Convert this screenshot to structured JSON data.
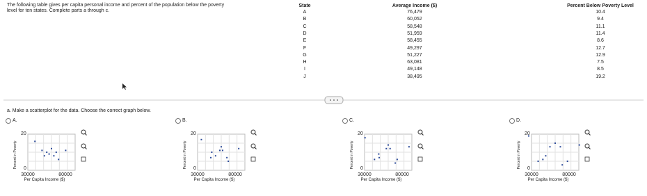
{
  "intro": [
    "The following table gives per capita personal income and percent of the population below the poverty",
    "level for ten states. Complete parts a through c."
  ],
  "table": {
    "headers": [
      "State",
      "Average Income ($)",
      "Percent Below Poverty Level"
    ],
    "rows": [
      [
        "A",
        "76,479",
        "10.4"
      ],
      [
        "B",
        "60,052",
        "9.4"
      ],
      [
        "C",
        "58,548",
        "11.1"
      ],
      [
        "D",
        "51,959",
        "11.4"
      ],
      [
        "E",
        "58,455",
        "8.6"
      ],
      [
        "F",
        "49,297",
        "12.7"
      ],
      [
        "G",
        "51,227",
        "12.9"
      ],
      [
        "H",
        "63,081",
        "7.5"
      ],
      [
        "I",
        "49,148",
        "8.5"
      ],
      [
        "J",
        "38,495",
        "19.2"
      ]
    ]
  },
  "question": "a. Make a scatterplot for the data. Choose the correct graph below.",
  "options": [
    {
      "label": "A.",
      "ylabel": "Percent in Poverty",
      "xlabel": "Per Capita Income ($)",
      "ytick_top": "20",
      "ytick_bottom": "0",
      "xtick_left": "30000",
      "xtick_right": "80000"
    },
    {
      "label": "B.",
      "ylabel": "Percent in Poverty",
      "xlabel": "Per Capita Income ($)",
      "ytick_top": "20",
      "ytick_bottom": "0",
      "xtick_left": "30000",
      "xtick_right": "80000"
    },
    {
      "label": "C.",
      "ylabel": "Percent in Poverty",
      "xlabel": "Per Capita Income ($)",
      "ytick_top": "20",
      "ytick_bottom": "0",
      "xtick_left": "30000",
      "xtick_right": "80000"
    },
    {
      "label": "D.",
      "ylabel": "Percent in Poverty",
      "xlabel": "Per Capita Income ($)",
      "ytick_top": "20",
      "ytick_bottom": "0",
      "xtick_left": "30000",
      "xtick_right": "80000"
    }
  ]
}
